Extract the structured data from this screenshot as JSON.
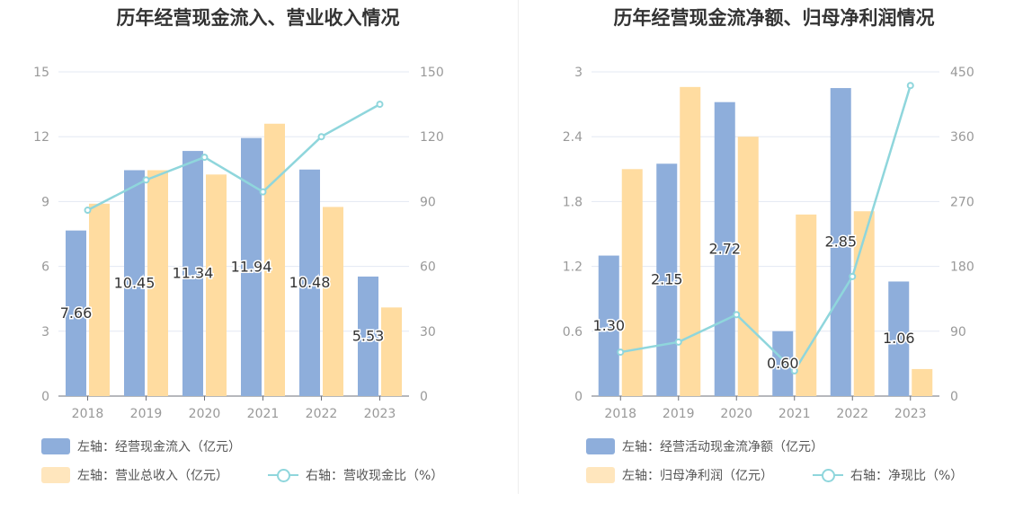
{
  "charts": [
    {
      "title": "历年经营现金流入、营业收入情况",
      "legend": [
        {
          "label": "左轴：经营现金流入（亿元）"
        },
        {
          "label": "左轴：营业总收入（亿元）"
        },
        {
          "label": "右轴：营收现金比（%）"
        }
      ]
    },
    {
      "title": "历年经营现金流净额、归母净利润情况",
      "legend": [
        {
          "label": "左轴：经营活动现金流净额（亿元）"
        },
        {
          "label": "左轴：归母净利润（亿元）"
        },
        {
          "label": "右轴：净现比（%）"
        }
      ]
    }
  ],
  "colors": {
    "bar1": "#8eaedb",
    "bar2": "#ffdca0",
    "line": "#8fd6dc",
    "grid": "#e3e8f3",
    "axis_text": "#999999"
  },
  "chart_data": [
    {
      "type": "bar",
      "title": "历年经营现金流入、营业收入情况",
      "categories": [
        "2018",
        "2019",
        "2020",
        "2021",
        "2022",
        "2023"
      ],
      "series": [
        {
          "name": "左轴：经营现金流入（亿元）",
          "axis": "left",
          "values": [
            7.66,
            10.45,
            11.34,
            11.94,
            10.48,
            5.53
          ],
          "labels": [
            "7.66",
            "10.45",
            "11.34",
            "11.94",
            "10.48",
            "5.53"
          ]
        },
        {
          "name": "左轴：营业总收入（亿元）",
          "axis": "left",
          "values": [
            8.9,
            10.45,
            10.25,
            12.6,
            8.75,
            4.1
          ]
        },
        {
          "name": "右轴：营收现金比（%）",
          "axis": "right",
          "type": "line",
          "values": [
            86,
            100,
            110.5,
            94.5,
            120,
            135
          ]
        }
      ],
      "left_axis": {
        "ylim": [
          0,
          15
        ],
        "ticks": [
          "0",
          "3",
          "6",
          "9",
          "12",
          "15"
        ]
      },
      "right_axis": {
        "ylim": [
          0,
          150
        ],
        "ticks": [
          "0",
          "30",
          "60",
          "90",
          "120",
          "150"
        ]
      },
      "grid": true,
      "legend_position": "bottom-left"
    },
    {
      "type": "bar",
      "title": "历年经营现金流净额、归母净利润情况",
      "categories": [
        "2018",
        "2019",
        "2020",
        "2021",
        "2022",
        "2023"
      ],
      "series": [
        {
          "name": "左轴：经营活动现金流净额（亿元）",
          "axis": "left",
          "values": [
            1.3,
            2.15,
            2.72,
            0.6,
            2.85,
            1.06
          ],
          "labels": [
            "1.30",
            "2.15",
            "2.72",
            "0.60",
            "2.85",
            "1.06"
          ]
        },
        {
          "name": "左轴：归母净利润（亿元）",
          "axis": "left",
          "values": [
            2.1,
            2.86,
            2.4,
            1.68,
            1.71,
            0.25
          ]
        },
        {
          "name": "右轴：净现比（%）",
          "axis": "right",
          "type": "line",
          "values": [
            61,
            75,
            113,
            35,
            166,
            431
          ]
        }
      ],
      "left_axis": {
        "ylim": [
          0,
          3
        ],
        "ticks": [
          "0",
          "0.6",
          "1.2",
          "1.8",
          "2.4",
          "3"
        ]
      },
      "right_axis": {
        "ylim": [
          0,
          450
        ],
        "ticks": [
          "0",
          "90",
          "180",
          "270",
          "360",
          "450"
        ]
      },
      "grid": true,
      "legend_position": "bottom-left"
    }
  ]
}
